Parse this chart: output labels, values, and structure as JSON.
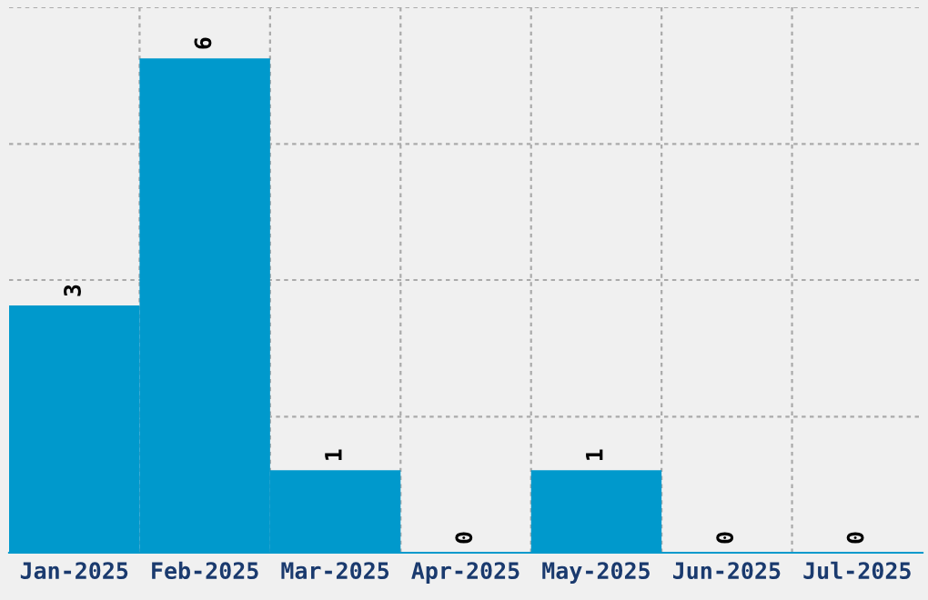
{
  "chart_data": {
    "type": "bar",
    "categories": [
      "Jan-2025",
      "Feb-2025",
      "Mar-2025",
      "Apr-2025",
      "May-2025",
      "Jun-2025",
      "Jul-2025"
    ],
    "values": [
      3,
      6,
      1,
      0,
      1,
      0,
      0
    ],
    "color": "#0099cc",
    "ylim": [
      0,
      6.62
    ],
    "yticks": [
      {
        "value": 1.65,
        "label": null
      },
      {
        "value": 3.31,
        "label": null
      },
      {
        "value": 4.96,
        "label": null
      },
      {
        "value": 6.62,
        "label": null
      }
    ],
    "tick_labels": "x",
    "grid": true,
    "data_labels": true
  }
}
